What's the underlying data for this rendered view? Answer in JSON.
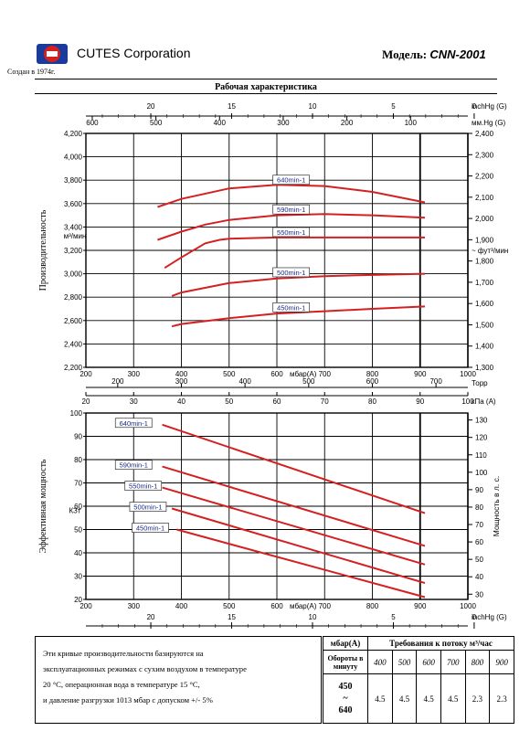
{
  "header": {
    "company": "CUTES Corporation",
    "founded": "Создан в 1974г.",
    "model_label": "Модель:",
    "model_value": "CNN-2001",
    "title": "Рабочая характеристика"
  },
  "colors": {
    "curve": "#d42020",
    "label_text": "#1a2a8a",
    "logo_red": "#d42020",
    "logo_blue": "#1a3a9c"
  },
  "chart_data": [
    {
      "type": "line",
      "ylabel": "Производительность",
      "y_unit": "м³/мин",
      "ylim": [
        2200,
        4200
      ],
      "y_ticks": [
        "2,200",
        "2,400",
        "2,600",
        "2,800",
        "3,000",
        "3,200",
        "3,400",
        "3,600",
        "3,800",
        "4,000",
        "4,200"
      ],
      "xlim": [
        200,
        1000
      ],
      "xlabel": "мбар(A)",
      "x_ticks": [
        "200",
        "300",
        "400",
        "500",
        "600",
        "700",
        "800",
        "900",
        "1000"
      ],
      "right_unit": "фут³/мин",
      "right_ticks": [
        "1,300",
        "1,400",
        "1,500",
        "1,600",
        "1,700",
        "1,800",
        "1,900",
        "2,000",
        "2,100",
        "2,200",
        "2,300",
        "2,400"
      ],
      "right_ticks_range": [
        1300,
        2400
      ],
      "top_inhg_unit": "inchHg (G)",
      "top_inhg_ticks": [
        "20",
        "15",
        "10",
        "5",
        "0"
      ],
      "top_mmhg_unit": "мм.Hg (G)",
      "top_mmhg_ticks": [
        "600",
        "500",
        "400",
        "300",
        "200",
        "100"
      ],
      "torr_unit": "Торр",
      "torr_ticks": [
        "200",
        "300",
        "400",
        "500",
        "600",
        "700"
      ],
      "kpa_unit": "кПа (A)",
      "kpa_ticks": [
        "20",
        "30",
        "40",
        "50",
        "60",
        "70",
        "80",
        "90",
        "100"
      ],
      "grid": true,
      "series": [
        {
          "name": "640min-1",
          "x": [
            350,
            400,
            500,
            600,
            700,
            800,
            910
          ],
          "y": [
            3570,
            3640,
            3730,
            3760,
            3750,
            3700,
            3610
          ]
        },
        {
          "name": "590min-1",
          "x": [
            350,
            400,
            450,
            500,
            600,
            700,
            800,
            910
          ],
          "y": [
            3290,
            3360,
            3420,
            3460,
            3500,
            3510,
            3500,
            3480
          ]
        },
        {
          "name": "550min-1",
          "x": [
            365,
            400,
            450,
            480,
            500,
            600,
            700,
            800,
            910
          ],
          "y": [
            3050,
            3140,
            3260,
            3290,
            3300,
            3310,
            3310,
            3310,
            3310
          ]
        },
        {
          "name": "500min-1",
          "x": [
            380,
            400,
            500,
            600,
            700,
            800,
            910
          ],
          "y": [
            2810,
            2840,
            2920,
            2960,
            2980,
            2990,
            3000
          ]
        },
        {
          "name": "450min-1",
          "x": [
            380,
            400,
            500,
            600,
            700,
            800,
            910
          ],
          "y": [
            2550,
            2570,
            2620,
            2660,
            2680,
            2700,
            2720
          ]
        }
      ]
    },
    {
      "type": "line",
      "ylabel": "Эффективная мощность",
      "y_unit": "КЗт",
      "ylim": [
        20,
        100
      ],
      "y_ticks": [
        "20",
        "30",
        "40",
        "50",
        "60",
        "70",
        "80",
        "90",
        "100"
      ],
      "xlim": [
        200,
        1000
      ],
      "xlabel": "мбар(A)",
      "x_ticks": [
        "200",
        "300",
        "400",
        "500",
        "600",
        "700",
        "800",
        "900",
        "1000"
      ],
      "right_unit": "Мощность в л. с.",
      "right_ticks": [
        "30",
        "40",
        "50",
        "60",
        "70",
        "80",
        "90",
        "100",
        "110",
        "120",
        "130"
      ],
      "right_ticks_range": [
        27,
        134
      ],
      "bottom_inhg_unit": "inchHg (G)",
      "bottom_inhg_ticks": [
        "20",
        "15",
        "10",
        "5",
        "0"
      ],
      "grid": true,
      "series": [
        {
          "name": "640min-1",
          "x": [
            360,
            910
          ],
          "y": [
            95,
            57
          ]
        },
        {
          "name": "590min-1",
          "x": [
            360,
            910
          ],
          "y": [
            77,
            43
          ]
        },
        {
          "name": "550min-1",
          "x": [
            360,
            910
          ],
          "y": [
            68,
            35
          ]
        },
        {
          "name": "500min-1",
          "x": [
            380,
            910
          ],
          "y": [
            59,
            27
          ]
        },
        {
          "name": "450min-1",
          "x": [
            390,
            910
          ],
          "y": [
            50,
            21
          ]
        }
      ]
    }
  ],
  "notes": {
    "lines": [
      "Эти кривые производительности базируются на",
      "эксплуатационных режимах с сухим воздухом в температуре",
      "20 °С, операционная вода в температуре 15 °С,",
      "и давление разгрузки 1013 мбар с допуском +/- 5%"
    ]
  },
  "requirements_table": {
    "col1_header": "мбар(A)",
    "col2_header": "Требования к потоку м³/час",
    "row_label": "Обороты в минуту",
    "mbar": [
      "400",
      "500",
      "600",
      "700",
      "800",
      "900"
    ],
    "rpm_range": [
      "450",
      "~",
      "640"
    ],
    "flow": [
      "4.5",
      "4.5",
      "4.5",
      "4.5",
      "2.3",
      "2.3"
    ]
  }
}
